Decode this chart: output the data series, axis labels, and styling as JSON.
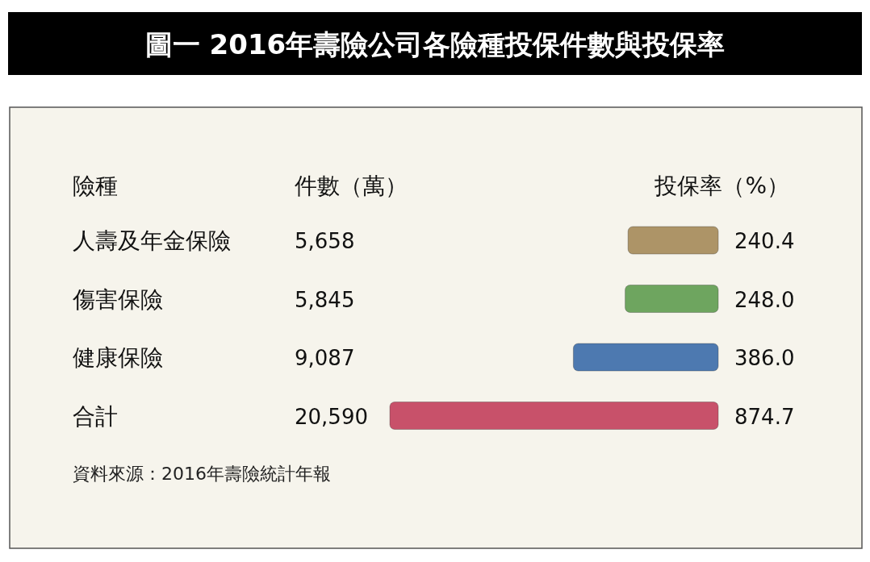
{
  "chart_data": {
    "type": "bar",
    "orientation": "horizontal",
    "title": "圖一 2016年壽險公司各險種投保件數與投保率",
    "ylabel": "險種",
    "xlabel": "投保率（%）",
    "categories": [
      "人壽及年金保險",
      "傷害保險",
      "健康保險",
      "合計"
    ],
    "values": [
      240.4,
      248.0,
      386.0,
      874.7
    ],
    "colors": [
      "#ad9467",
      "#6ea55f",
      "#4d79b0",
      "#c8516a"
    ],
    "value_labels": [
      "240.4",
      "248.0",
      "386.0",
      "874.7"
    ],
    "annotations": [
      "件數（萬）",
      "5,658",
      "5,845",
      "9,087",
      "20,590",
      "資料來源：2016年壽險統計年報"
    ]
  }
}
